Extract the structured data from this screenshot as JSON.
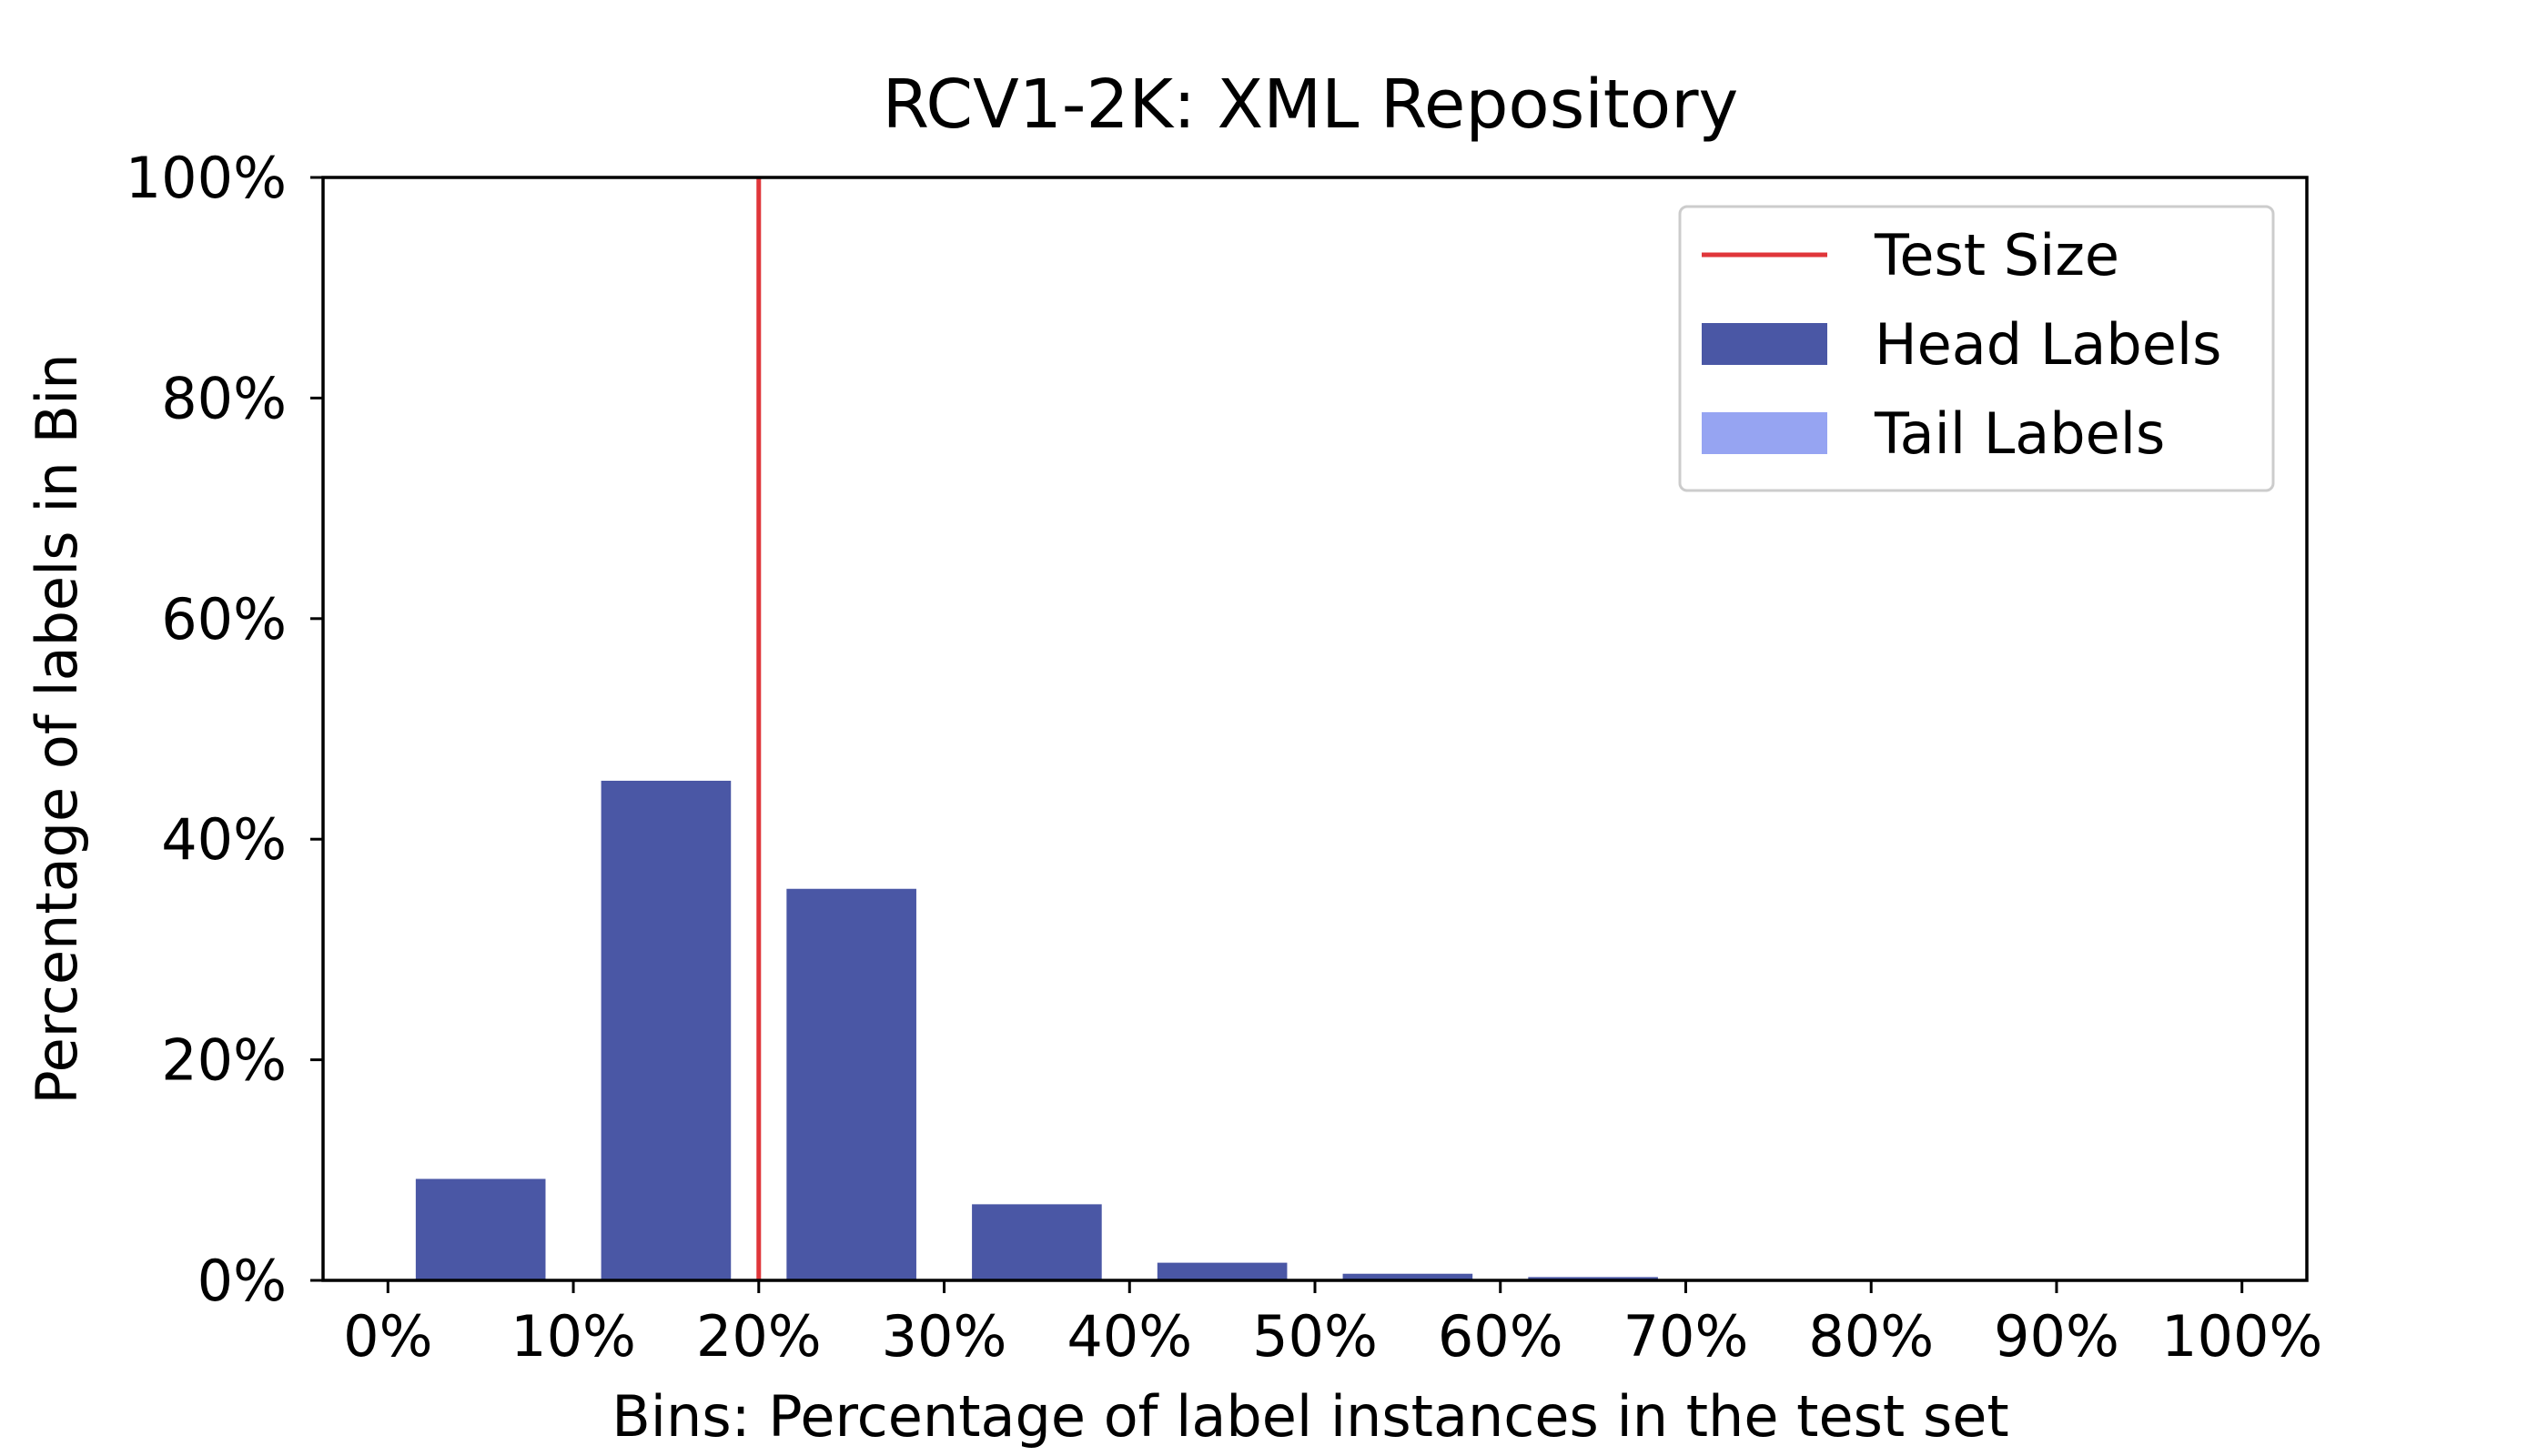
{
  "chart_data": {
    "type": "bar",
    "title": "RCV1-2K: XML Repository",
    "xlabel": "Bins: Percentage of label instances in the test set",
    "ylabel": "Percentage of labels in Bin",
    "xlim": [
      -3.5,
      103.5
    ],
    "ylim": [
      0,
      100
    ],
    "xticks": [
      0,
      10,
      20,
      30,
      40,
      50,
      60,
      70,
      80,
      90,
      100
    ],
    "xtick_labels": [
      "0%",
      "10%",
      "20%",
      "30%",
      "40%",
      "50%",
      "60%",
      "70%",
      "80%",
      "90%",
      "100%"
    ],
    "yticks": [
      0,
      20,
      40,
      60,
      80,
      100
    ],
    "ytick_labels": [
      "0%",
      "20%",
      "40%",
      "60%",
      "80%",
      "100%"
    ],
    "bin_width": 7,
    "series": [
      {
        "name": "Head Labels",
        "color": "#4a57a5",
        "x": [
          5,
          15,
          25,
          35,
          45,
          55,
          65
        ],
        "values": [
          9.2,
          45.3,
          35.5,
          6.9,
          1.6,
          0.6,
          0.3
        ]
      },
      {
        "name": "Tail Labels",
        "color": "#96a4f2",
        "x": [],
        "values": []
      }
    ],
    "reference_line": {
      "name": "Test Size",
      "x": 20,
      "color": "#e0363a"
    },
    "legend_position": "top-right",
    "grid": false
  }
}
